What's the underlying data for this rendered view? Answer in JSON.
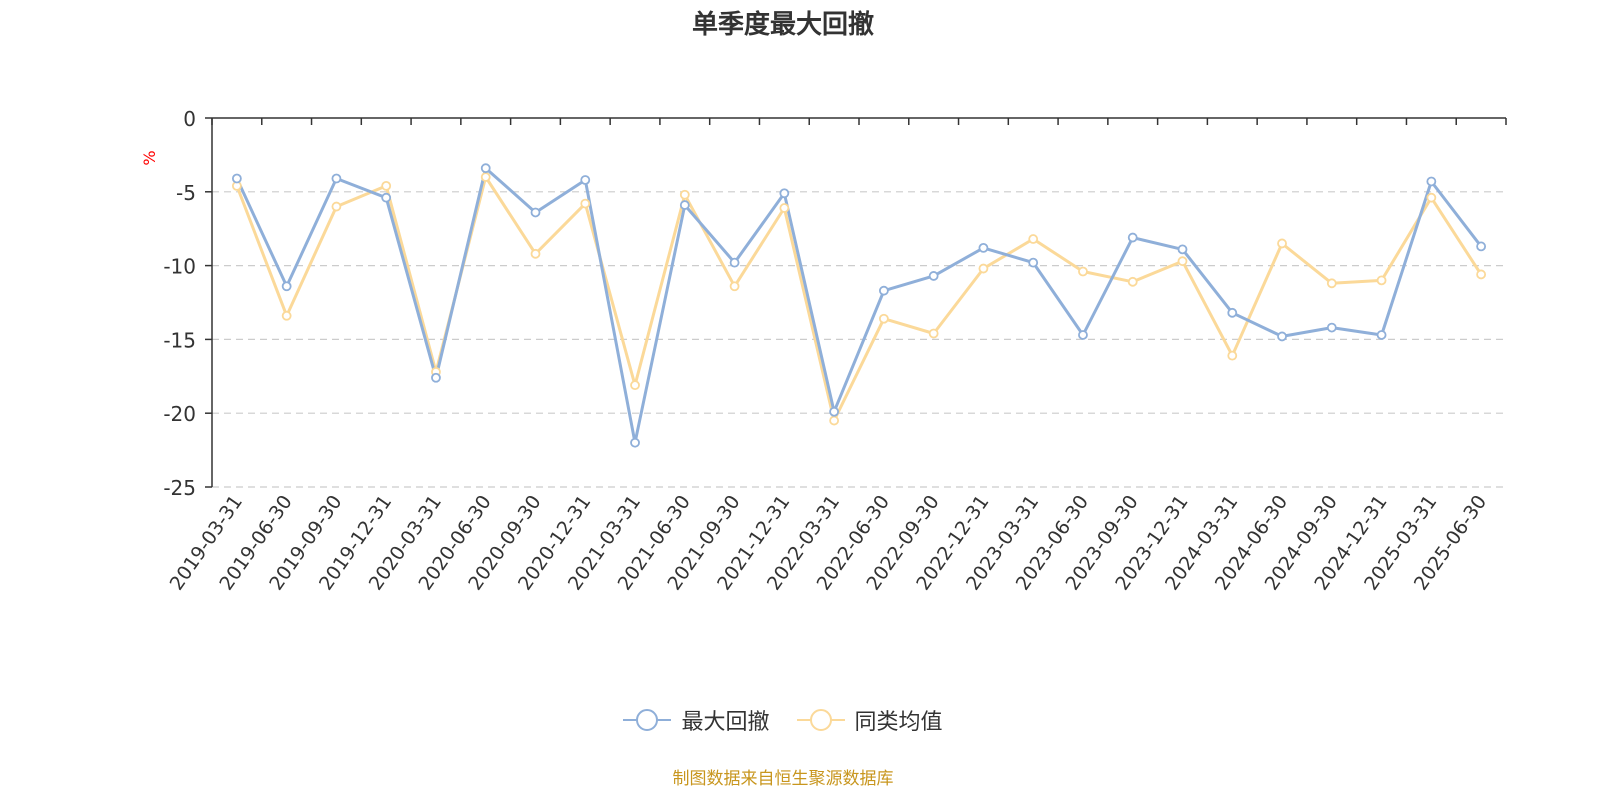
{
  "colors": {
    "series1": "#8fafd9",
    "series2": "#fbd999",
    "unit": "#ff0000",
    "source": "#c8961e",
    "grid": "#cccccc",
    "axis": "#333333"
  },
  "footer": {
    "source": "制图数据来自恒生聚源数据库"
  },
  "chart_data": {
    "type": "line",
    "title": "单季度最大回撤",
    "ylabel": "%",
    "ylim": [
      -25,
      0
    ],
    "yticks": [
      0,
      -5,
      -10,
      -15,
      -20,
      -25
    ],
    "grid": "horizontal dashed",
    "legend_position": "bottom-center",
    "categories": [
      "2019-03-31",
      "2019-06-30",
      "2019-09-30",
      "2019-12-31",
      "2020-03-31",
      "2020-06-30",
      "2020-09-30",
      "2020-12-31",
      "2021-03-31",
      "2021-06-30",
      "2021-09-30",
      "2021-12-31",
      "2022-03-31",
      "2022-06-30",
      "2022-09-30",
      "2022-12-31",
      "2023-03-31",
      "2023-06-30",
      "2023-09-30",
      "2023-12-31",
      "2024-03-31",
      "2024-06-30",
      "2024-09-30",
      "2024-12-31",
      "2025-03-31",
      "2025-06-30"
    ],
    "series": [
      {
        "name": "最大回撤",
        "values": [
          -4.1,
          -11.4,
          -4.1,
          -5.4,
          -17.6,
          -3.4,
          -6.4,
          -4.2,
          -22.0,
          -5.9,
          -9.8,
          -5.1,
          -19.9,
          -11.7,
          -10.7,
          -8.8,
          -9.8,
          -14.7,
          -8.1,
          -8.9,
          -13.2,
          -14.8,
          -14.2,
          -14.7,
          -4.3,
          -8.7
        ]
      },
      {
        "name": "同类均值",
        "values": [
          -4.6,
          -13.4,
          -6.0,
          -4.6,
          -17.2,
          -4.0,
          -9.2,
          -5.8,
          -18.1,
          -5.2,
          -11.4,
          -6.1,
          -20.5,
          -13.6,
          -14.6,
          -10.2,
          -8.2,
          -10.4,
          -11.1,
          -9.7,
          -16.1,
          -8.5,
          -11.2,
          -11.0,
          -5.4,
          -10.6
        ]
      }
    ]
  }
}
